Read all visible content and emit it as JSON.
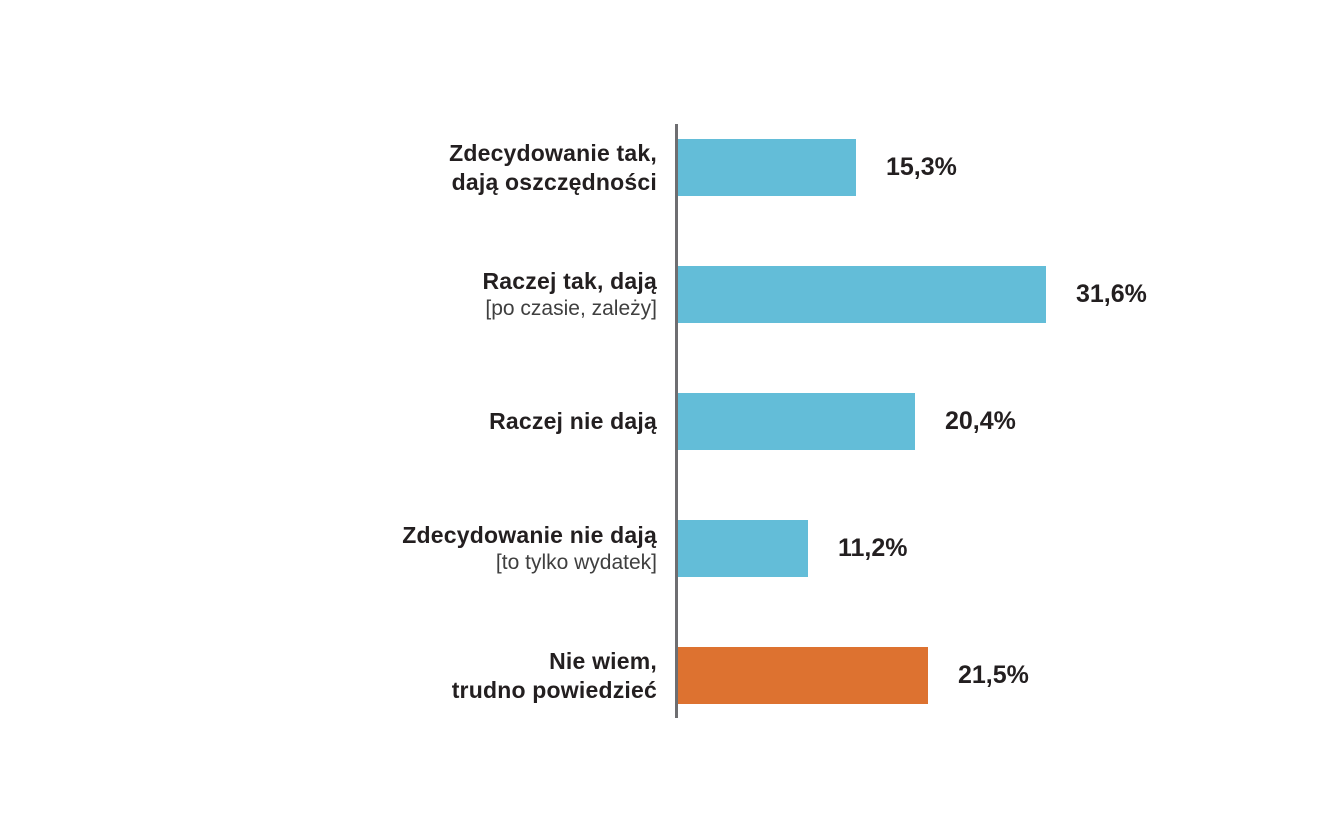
{
  "chart_data": {
    "type": "bar",
    "orientation": "horizontal",
    "title": "",
    "xlabel": "",
    "ylabel": "",
    "xlim": [
      0,
      35
    ],
    "grid": false,
    "legend": false,
    "categories": [
      "Zdecydowanie tak, dają oszczędności",
      "Raczej tak, dają [po czasie, zależy]",
      "Raczej nie dają",
      "Zdecydowanie nie dają [to tylko wydatek]",
      "Nie wiem, trudno powiedzieć"
    ],
    "values": [
      15.3,
      31.6,
      20.4,
      11.2,
      21.5
    ],
    "value_labels": [
      "15,3%",
      "31,6%",
      "20,4%",
      "11,2%",
      "21,5%"
    ],
    "bar_colors": [
      "#63BDD8",
      "#63BDD8",
      "#63BDD8",
      "#63BDD8",
      "#DD7230"
    ],
    "rows": [
      {
        "label_lines": [
          "Zdecydowanie tak,",
          "dają oszczędności"
        ],
        "sublabel": "",
        "value": 15.3,
        "value_label": "15,3%",
        "color": "#63BDD8"
      },
      {
        "label_lines": [
          "Raczej tak, dają"
        ],
        "sublabel": "[po czasie, zależy]",
        "value": 31.6,
        "value_label": "31,6%",
        "color": "#63BDD8"
      },
      {
        "label_lines": [
          "Raczej nie dają"
        ],
        "sublabel": "",
        "value": 20.4,
        "value_label": "20,4%",
        "color": "#63BDD8"
      },
      {
        "label_lines": [
          "Zdecydowanie nie dają"
        ],
        "sublabel": "[to tylko wydatek]",
        "value": 11.2,
        "value_label": "11,2%",
        "color": "#63BDD8"
      },
      {
        "label_lines": [
          "Nie wiem,",
          "trudno powiedzieć"
        ],
        "sublabel": "",
        "value": 21.5,
        "value_label": "21,5%",
        "color": "#DD7230"
      }
    ]
  },
  "style": {
    "background": "#ffffff",
    "axis_color": "#6E6E71",
    "text_color": "#231F20",
    "sublabel_color": "#3F3F3F",
    "bar_blue": "#63BDD8",
    "bar_orange": "#DD7230"
  }
}
